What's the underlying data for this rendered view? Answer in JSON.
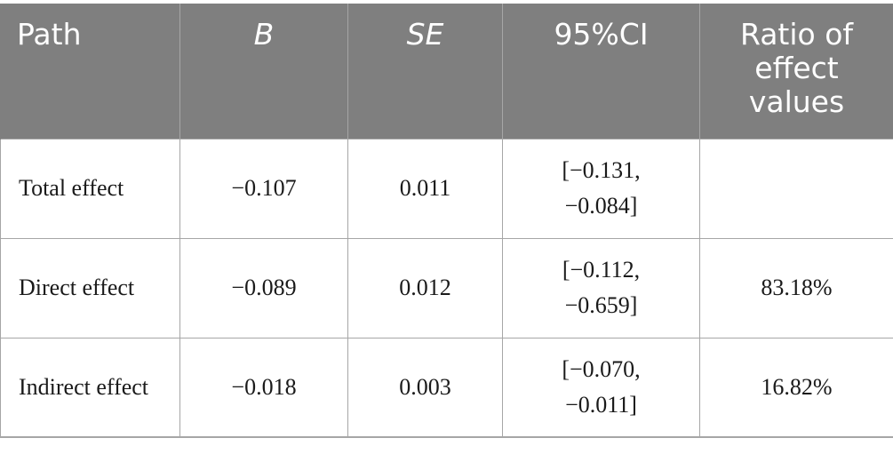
{
  "table": {
    "headers": {
      "path": "Path",
      "b": "B",
      "se": "SE",
      "ci": "95%CI",
      "ratio": "Ratio of effect values"
    },
    "rows": [
      {
        "path": "Total effect",
        "b": "−0.107",
        "se": "0.011",
        "ci_low": "[−0.131,",
        "ci_high": "−0.084]",
        "ratio": ""
      },
      {
        "path": "Direct effect",
        "b": "−0.089",
        "se": "0.012",
        "ci_low": "[−0.112,",
        "ci_high": "−0.659]",
        "ratio": "83.18%"
      },
      {
        "path": "Indirect effect",
        "b": "−0.018",
        "se": "0.003",
        "ci_low": "[−0.070,",
        "ci_high": "−0.011]",
        "ratio": "16.82%"
      }
    ]
  }
}
